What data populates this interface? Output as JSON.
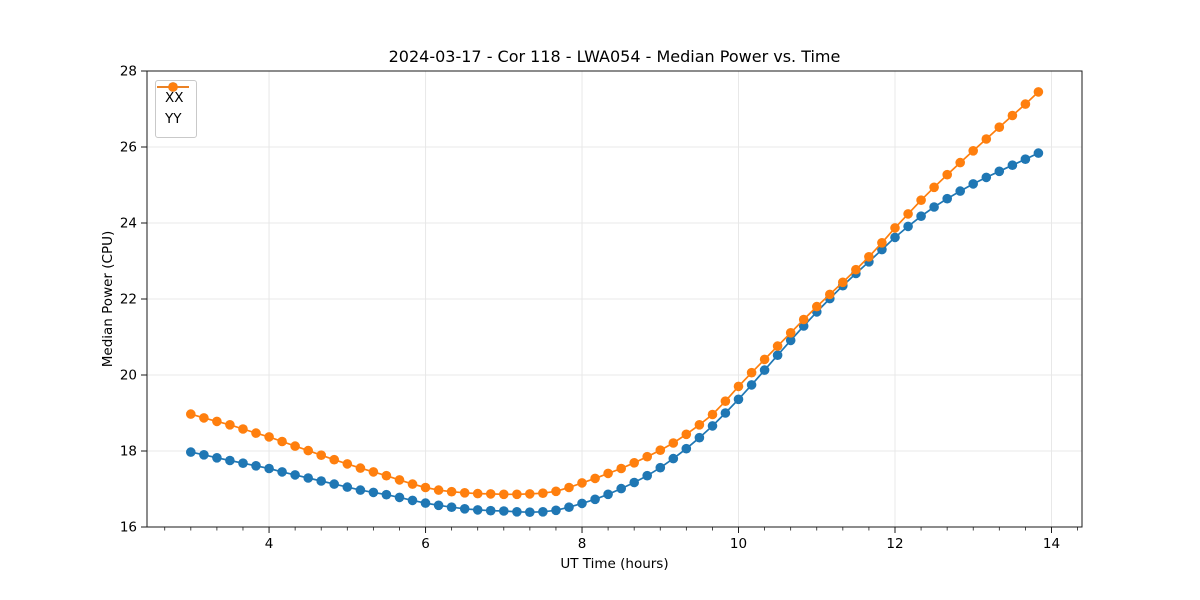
{
  "figure": {
    "background": "#ffffff",
    "text_color": "#000000",
    "grid_color": "#e8e8e8",
    "spine_color": "#1a1a1a"
  },
  "chart_data": {
    "type": "line",
    "title": "2024-03-17 - Cor 118 - LWA054 - Median Power vs. Time",
    "xlabel": "UT Time (hours)",
    "ylabel": "Median Power (CPU)",
    "xlim": [
      2.44,
      14.39
    ],
    "ylim": [
      16,
      28
    ],
    "x_major_ticks": [
      4,
      6,
      8,
      10,
      12,
      14
    ],
    "x_minor_tick_interval": 0.33333,
    "y_major_ticks": [
      16,
      18,
      20,
      22,
      24,
      26,
      28
    ],
    "grid": true,
    "legend_position": "upper-left",
    "x": [
      3.0,
      3.167,
      3.333,
      3.5,
      3.667,
      3.833,
      4.0,
      4.167,
      4.333,
      4.5,
      4.667,
      4.833,
      5.0,
      5.167,
      5.333,
      5.5,
      5.667,
      5.833,
      6.0,
      6.167,
      6.333,
      6.5,
      6.667,
      6.833,
      7.0,
      7.167,
      7.333,
      7.5,
      7.667,
      7.833,
      8.0,
      8.167,
      8.333,
      8.5,
      8.667,
      8.833,
      9.0,
      9.167,
      9.333,
      9.5,
      9.667,
      9.833,
      10.0,
      10.167,
      10.333,
      10.5,
      10.667,
      10.833,
      11.0,
      11.167,
      11.333,
      11.5,
      11.667,
      11.833,
      12.0,
      12.167,
      12.333,
      12.5,
      12.667,
      12.833,
      13.0,
      13.167,
      13.333,
      13.5,
      13.667,
      13.833
    ],
    "series": [
      {
        "name": "XX",
        "color": "#1f77b4",
        "marker": "circle",
        "values": [
          17.97,
          17.9,
          17.82,
          17.75,
          17.68,
          17.61,
          17.54,
          17.45,
          17.37,
          17.29,
          17.21,
          17.13,
          17.05,
          16.97,
          16.91,
          16.85,
          16.78,
          16.7,
          16.63,
          16.57,
          16.52,
          16.48,
          16.45,
          16.43,
          16.42,
          16.4,
          16.39,
          16.4,
          16.44,
          16.52,
          16.62,
          16.73,
          16.86,
          17.01,
          17.17,
          17.35,
          17.56,
          17.8,
          18.06,
          18.35,
          18.66,
          19.0,
          19.36,
          19.74,
          20.13,
          20.52,
          20.91,
          21.29,
          21.66,
          22.01,
          22.35,
          22.67,
          22.98,
          23.3,
          23.62,
          23.91,
          24.18,
          24.42,
          24.64,
          24.84,
          25.03,
          25.2,
          25.36,
          25.52,
          25.68,
          25.84
        ]
      },
      {
        "name": "YY",
        "color": "#ff7f0e",
        "marker": "circle",
        "values": [
          18.97,
          18.87,
          18.78,
          18.69,
          18.58,
          18.47,
          18.37,
          18.25,
          18.13,
          18.01,
          17.89,
          17.77,
          17.66,
          17.55,
          17.45,
          17.35,
          17.24,
          17.13,
          17.04,
          16.97,
          16.93,
          16.9,
          16.88,
          16.87,
          16.86,
          16.86,
          16.87,
          16.89,
          16.94,
          17.04,
          17.16,
          17.28,
          17.41,
          17.54,
          17.69,
          17.85,
          18.02,
          18.21,
          18.44,
          18.69,
          18.96,
          19.31,
          19.7,
          20.06,
          20.41,
          20.76,
          21.11,
          21.46,
          21.8,
          22.12,
          22.44,
          22.77,
          23.11,
          23.48,
          23.87,
          24.24,
          24.6,
          24.94,
          25.27,
          25.59,
          25.9,
          26.21,
          26.52,
          26.83,
          27.13,
          27.45
        ]
      }
    ]
  }
}
